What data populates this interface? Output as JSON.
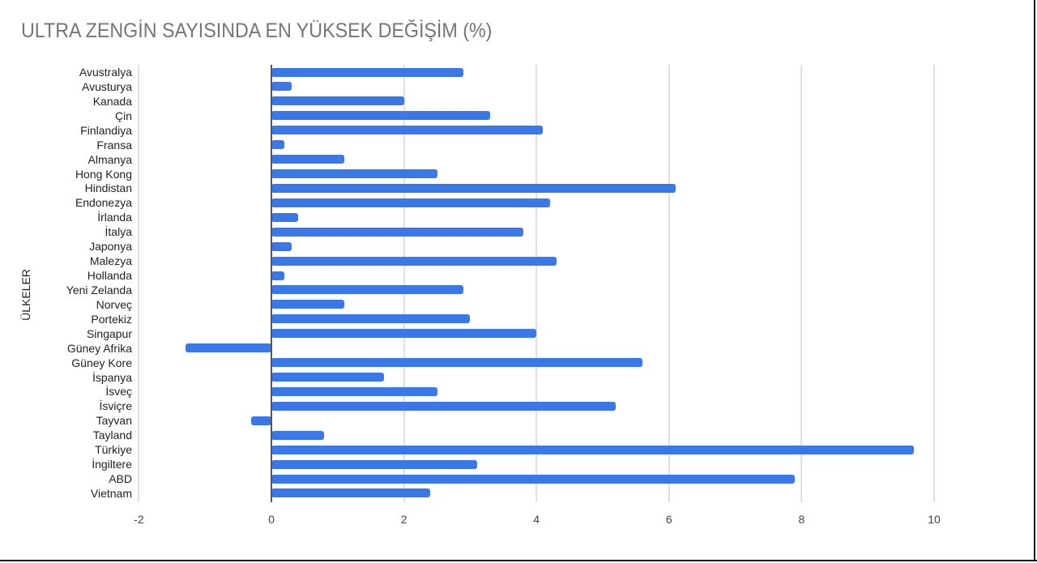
{
  "chart_data": {
    "type": "bar",
    "orientation": "horizontal",
    "title": "ULTRA ZENGİN SAYISINDA EN YÜKSEK DEĞİŞİM (%)",
    "xlabel": "",
    "ylabel": "ÜLKELER",
    "xlim": [
      -2,
      11
    ],
    "xticks": [
      "-2",
      "0",
      "2",
      "4",
      "6",
      "8",
      "10"
    ],
    "grid": true,
    "legend": null,
    "bar_color": "#3b78e7",
    "categories": [
      "Avustralya",
      "Avusturya",
      "Kanada",
      "Çin",
      "Finlandiya",
      "Fransa",
      "Almanya",
      "Hong Kong",
      "Hindistan",
      "Endonezya",
      "İrlanda",
      "İtalya",
      "Japonya",
      "Malezya",
      "Hollanda",
      "Yeni Zelanda",
      "Norveç",
      "Portekiz",
      "Singapur",
      "Güney Afrika",
      "Güney Kore",
      "İspanya",
      "İsveç",
      "İsviçre",
      "Tayvan",
      "Tayland",
      "Türkiye",
      "İngiltere",
      "ABD",
      "Vietnam"
    ],
    "values": [
      2.9,
      0.3,
      2.0,
      3.3,
      4.1,
      0.2,
      1.1,
      2.5,
      6.1,
      4.2,
      0.4,
      3.8,
      0.3,
      4.3,
      0.2,
      2.9,
      1.1,
      3.0,
      4.0,
      -1.3,
      5.6,
      1.7,
      2.5,
      5.2,
      -0.3,
      0.8,
      9.7,
      3.1,
      7.9,
      2.4
    ]
  }
}
